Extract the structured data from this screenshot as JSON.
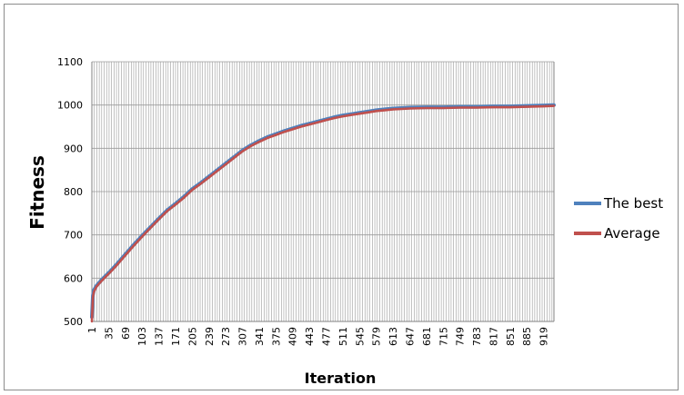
{
  "chart_data": {
    "type": "line",
    "title": "",
    "xlabel": "Iteration",
    "ylabel": "Fitness",
    "xlim": [
      1,
      940
    ],
    "ylim": [
      500,
      1100
    ],
    "y_ticks": [
      500,
      600,
      700,
      800,
      900,
      1000,
      1100
    ],
    "x_tick_labels": [
      "1",
      "35",
      "69",
      "103",
      "137",
      "171",
      "205",
      "239",
      "273",
      "307",
      "341",
      "375",
      "409",
      "443",
      "477",
      "511",
      "545",
      "579",
      "613",
      "647",
      "681",
      "715",
      "749",
      "783",
      "817",
      "851",
      "885",
      "919"
    ],
    "grid": true,
    "legend_position": "right",
    "series": [
      {
        "name": "The best",
        "color": "#4f81bd",
        "x": [
          1,
          3,
          5,
          10,
          20,
          35,
          50,
          69,
          86,
          103,
          120,
          137,
          154,
          171,
          188,
          205,
          222,
          239,
          256,
          273,
          290,
          307,
          324,
          341,
          358,
          375,
          392,
          409,
          426,
          443,
          460,
          477,
          494,
          511,
          528,
          545,
          562,
          579,
          596,
          613,
          630,
          647,
          681,
          715,
          749,
          783,
          817,
          851,
          885,
          919,
          940
        ],
        "y": [
          510,
          560,
          572,
          582,
          595,
          612,
          630,
          655,
          677,
          698,
          718,
          738,
          757,
          772,
          788,
          806,
          820,
          835,
          850,
          865,
          880,
          895,
          907,
          917,
          926,
          933,
          940,
          946,
          952,
          957,
          962,
          967,
          972,
          976,
          979,
          982,
          985,
          988,
          990,
          992,
          993,
          994,
          995,
          995,
          996,
          996,
          997,
          997,
          998,
          999,
          1000
        ]
      },
      {
        "name": "Average",
        "color": "#c0504d",
        "x": [
          1,
          3,
          5,
          10,
          20,
          35,
          50,
          69,
          86,
          103,
          120,
          137,
          154,
          171,
          188,
          205,
          222,
          239,
          256,
          273,
          290,
          307,
          324,
          341,
          358,
          375,
          392,
          409,
          426,
          443,
          460,
          477,
          494,
          511,
          528,
          545,
          562,
          579,
          596,
          613,
          630,
          647,
          681,
          715,
          749,
          783,
          817,
          851,
          885,
          919,
          940
        ],
        "y": [
          500,
          555,
          568,
          580,
          593,
          610,
          628,
          653,
          675,
          696,
          716,
          736,
          755,
          770,
          786,
          804,
          818,
          833,
          848,
          863,
          878,
          893,
          905,
          915,
          924,
          931,
          938,
          944,
          950,
          955,
          960,
          965,
          970,
          974,
          977,
          980,
          983,
          986,
          988,
          990,
          991,
          992,
          993,
          993,
          994,
          994,
          995,
          995,
          996,
          997,
          998
        ]
      }
    ]
  }
}
